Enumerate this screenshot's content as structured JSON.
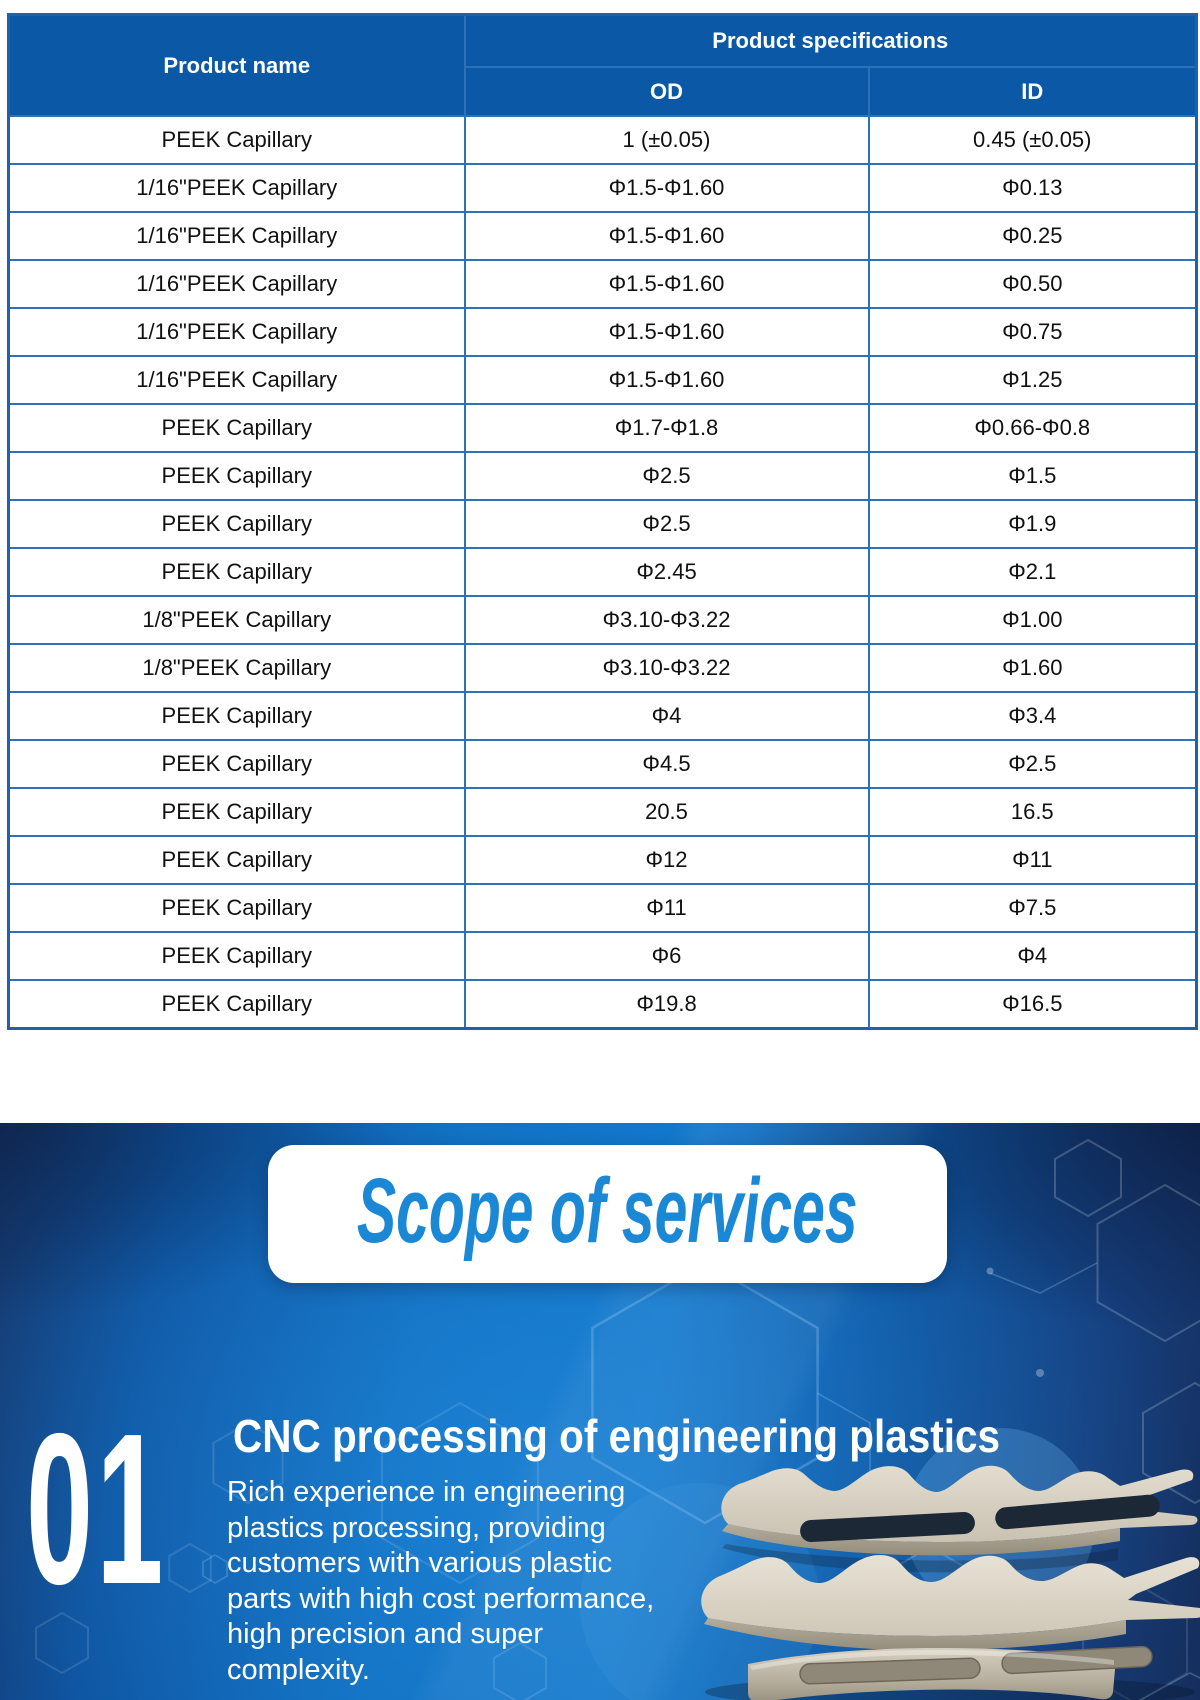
{
  "table": {
    "header": {
      "product_name": "Product name",
      "product_specifications": "Product specifications",
      "od": "OD",
      "id": "ID"
    },
    "rows": [
      {
        "name": "PEEK Capillary",
        "od": "1 (±0.05)",
        "id": "0.45 (±0.05)"
      },
      {
        "name": "1/16\"PEEK Capillary",
        "od": "Φ1.5-Φ1.60",
        "id": "Φ0.13"
      },
      {
        "name": "1/16\"PEEK Capillary",
        "od": "Φ1.5-Φ1.60",
        "id": "Φ0.25"
      },
      {
        "name": "1/16\"PEEK Capillary",
        "od": "Φ1.5-Φ1.60",
        "id": "Φ0.50"
      },
      {
        "name": "1/16\"PEEK Capillary",
        "od": "Φ1.5-Φ1.60",
        "id": "Φ0.75"
      },
      {
        "name": "1/16\"PEEK Capillary",
        "od": "Φ1.5-Φ1.60",
        "id": "Φ1.25"
      },
      {
        "name": "PEEK Capillary",
        "od": "Φ1.7-Φ1.8",
        "id": "Φ0.66-Φ0.8"
      },
      {
        "name": "PEEK Capillary",
        "od": "Φ2.5",
        "id": "Φ1.5"
      },
      {
        "name": "PEEK Capillary",
        "od": "Φ2.5",
        "id": "Φ1.9"
      },
      {
        "name": "PEEK Capillary",
        "od": "Φ2.45",
        "id": "Φ2.1"
      },
      {
        "name": "1/8\"PEEK Capillary",
        "od": "Φ3.10-Φ3.22",
        "id": "Φ1.00"
      },
      {
        "name": "1/8\"PEEK Capillary",
        "od": "Φ3.10-Φ3.22",
        "id": "Φ1.60"
      },
      {
        "name": "PEEK Capillary",
        "od": "Φ4",
        "id": "Φ3.4"
      },
      {
        "name": "PEEK Capillary",
        "od": "Φ4.5",
        "id": "Φ2.5"
      },
      {
        "name": "PEEK Capillary",
        "od": "20.5",
        "id": "16.5"
      },
      {
        "name": "PEEK Capillary",
        "od": "Φ12",
        "id": "Φ11"
      },
      {
        "name": "PEEK Capillary",
        "od": "Φ11",
        "id": "Φ7.5"
      },
      {
        "name": "PEEK Capillary",
        "od": "Φ6",
        "id": "Φ4"
      },
      {
        "name": "PEEK Capillary",
        "od": "Φ19.8",
        "id": "Φ16.5"
      }
    ]
  },
  "services": {
    "section_title": "Scope of services",
    "item_number": "01",
    "item_title": "CNC processing of engineering plastics",
    "item_description": "Rich experience in engineering plastics processing, providing customers with various plastic parts with high cost performance, high precision and super complexity."
  },
  "decor": {
    "pattern": "hexagon-molecule-outlines",
    "illustration": "cnc-machined-beige-plastic-part"
  },
  "colors": {
    "table_header_bg": "#0b59a6",
    "table_border": "#2c72b9",
    "banner_bright_blue": "#1277cb",
    "banner_navy": "#152e5c",
    "scope_title_color": "#1a88d5",
    "part_beige": "#d8d1c2"
  }
}
